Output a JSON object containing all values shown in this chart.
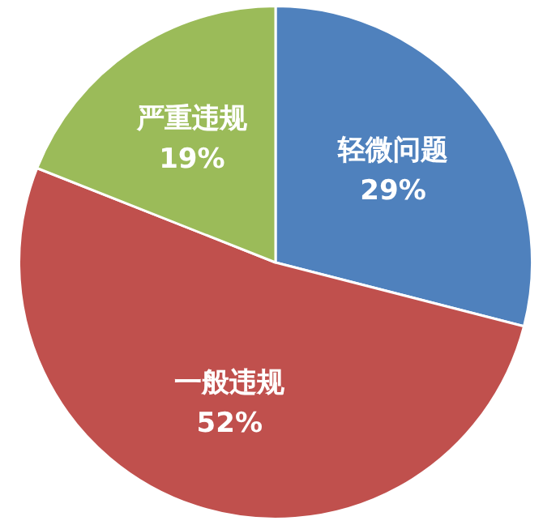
{
  "chart_data": {
    "type": "pie",
    "categories": [
      "轻微问题",
      "一般违规",
      "严重违规"
    ],
    "values": [
      29,
      52,
      19
    ],
    "colors": [
      "#4f81bd",
      "#c0504d",
      "#9bbb59"
    ],
    "value_labels": [
      "29%",
      "52%",
      "19%"
    ],
    "legend": false
  }
}
